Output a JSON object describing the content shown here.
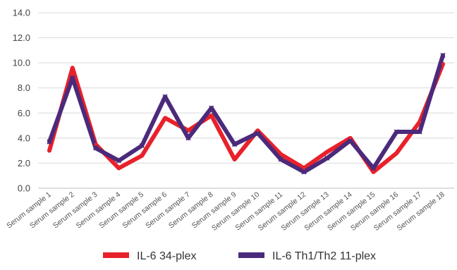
{
  "chart_data": {
    "type": "line",
    "title": "",
    "xlabel": "",
    "ylabel": "",
    "ylim": [
      0,
      14
    ],
    "yticks": [
      "0.0",
      "2.0",
      "4.0",
      "6.0",
      "8.0",
      "10.0",
      "12.0",
      "14.0"
    ],
    "grid": true,
    "legend_position": "bottom",
    "categories": [
      "Serum sample 1",
      "Serum sample 2",
      "Serum sample 3",
      "Serum sample 4",
      "Serum sample 5",
      "Serum sample 6",
      "Serum sample 7",
      "Serum sample 8",
      "Serum sample 9",
      "Serum sample 10",
      "Serum sample 11",
      "Serum sample 12",
      "Serum sample 13",
      "Serum sample 14",
      "Serum sample 15",
      "Serum sample 16",
      "Serum sample 17",
      "Serum sample 18"
    ],
    "series": [
      {
        "name": "IL-6 34-plex",
        "color": "#e8212b",
        "values": [
          3.0,
          9.6,
          3.5,
          1.6,
          2.6,
          5.6,
          4.6,
          5.8,
          2.3,
          4.6,
          2.7,
          1.6,
          2.9,
          4.0,
          1.3,
          2.8,
          5.3,
          9.9
        ]
      },
      {
        "name": "IL-6 Th1/Th2 11-plex",
        "color": "#4b2a7b",
        "values": [
          3.7,
          8.8,
          3.2,
          2.2,
          3.4,
          7.3,
          4.0,
          6.4,
          3.5,
          4.4,
          2.3,
          1.3,
          2.4,
          3.8,
          1.6,
          4.5,
          4.5,
          10.6
        ]
      }
    ]
  }
}
